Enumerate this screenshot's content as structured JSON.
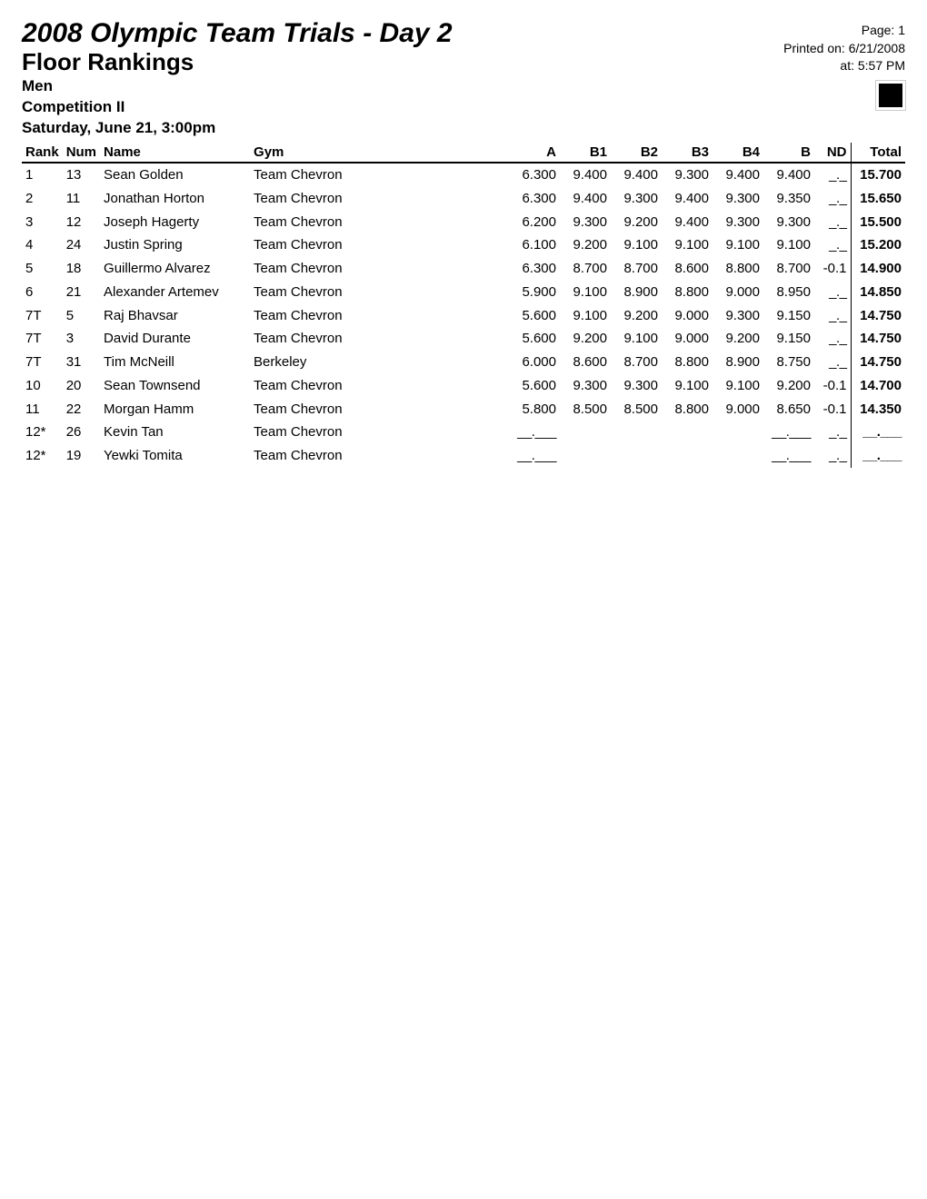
{
  "header": {
    "title_main": "2008 Olympic Team Trials - Day 2",
    "title_sub": "Floor Rankings",
    "line1": "Men",
    "line2": "Competition II",
    "line3": "Saturday, June 21, 3:00pm",
    "page_label": "Page: 1",
    "printed_label": "Printed on: 6/21/2008",
    "at_label": "at: 5:57 PM"
  },
  "table": {
    "columns": {
      "rank": "Rank",
      "num": "Num",
      "name": "Name",
      "gym": "Gym",
      "a": "A",
      "b1": "B1",
      "b2": "B2",
      "b3": "B3",
      "b4": "B4",
      "b": "B",
      "nd": "ND",
      "total": "Total"
    },
    "rows": [
      {
        "rank": "1",
        "num": "13",
        "name": "Sean Golden",
        "gym": "Team Chevron",
        "a": "6.300",
        "b1": "9.400",
        "b2": "9.400",
        "b3": "9.300",
        "b4": "9.400",
        "b": "9.400",
        "nd": "_._",
        "total": "15.700"
      },
      {
        "rank": "2",
        "num": "11",
        "name": "Jonathan Horton",
        "gym": "Team Chevron",
        "a": "6.300",
        "b1": "9.400",
        "b2": "9.300",
        "b3": "9.400",
        "b4": "9.300",
        "b": "9.350",
        "nd": "_._",
        "total": "15.650"
      },
      {
        "rank": "3",
        "num": "12",
        "name": "Joseph Hagerty",
        "gym": "Team Chevron",
        "a": "6.200",
        "b1": "9.300",
        "b2": "9.200",
        "b3": "9.400",
        "b4": "9.300",
        "b": "9.300",
        "nd": "_._",
        "total": "15.500"
      },
      {
        "rank": "4",
        "num": "24",
        "name": "Justin Spring",
        "gym": "Team Chevron",
        "a": "6.100",
        "b1": "9.200",
        "b2": "9.100",
        "b3": "9.100",
        "b4": "9.100",
        "b": "9.100",
        "nd": "_._",
        "total": "15.200"
      },
      {
        "rank": "5",
        "num": "18",
        "name": "Guillermo Alvarez",
        "gym": "Team Chevron",
        "a": "6.300",
        "b1": "8.700",
        "b2": "8.700",
        "b3": "8.600",
        "b4": "8.800",
        "b": "8.700",
        "nd": "-0.1",
        "total": "14.900"
      },
      {
        "rank": "6",
        "num": "21",
        "name": "Alexander Artemev",
        "gym": "Team Chevron",
        "a": "5.900",
        "b1": "9.100",
        "b2": "8.900",
        "b3": "8.800",
        "b4": "9.000",
        "b": "8.950",
        "nd": "_._",
        "total": "14.850"
      },
      {
        "rank": "7T",
        "num": "5",
        "name": "Raj Bhavsar",
        "gym": "Team Chevron",
        "a": "5.600",
        "b1": "9.100",
        "b2": "9.200",
        "b3": "9.000",
        "b4": "9.300",
        "b": "9.150",
        "nd": "_._",
        "total": "14.750"
      },
      {
        "rank": "7T",
        "num": "3",
        "name": "David Durante",
        "gym": "Team Chevron",
        "a": "5.600",
        "b1": "9.200",
        "b2": "9.100",
        "b3": "9.000",
        "b4": "9.200",
        "b": "9.150",
        "nd": "_._",
        "total": "14.750"
      },
      {
        "rank": "7T",
        "num": "31",
        "name": "Tim McNeill",
        "gym": "Berkeley",
        "a": "6.000",
        "b1": "8.600",
        "b2": "8.700",
        "b3": "8.800",
        "b4": "8.900",
        "b": "8.750",
        "nd": "_._",
        "total": "14.750"
      },
      {
        "rank": "10",
        "num": "20",
        "name": "Sean Townsend",
        "gym": "Team Chevron",
        "a": "5.600",
        "b1": "9.300",
        "b2": "9.300",
        "b3": "9.100",
        "b4": "9.100",
        "b": "9.200",
        "nd": "-0.1",
        "total": "14.700"
      },
      {
        "rank": "11",
        "num": "22",
        "name": "Morgan Hamm",
        "gym": "Team Chevron",
        "a": "5.800",
        "b1": "8.500",
        "b2": "8.500",
        "b3": "8.800",
        "b4": "9.000",
        "b": "8.650",
        "nd": "-0.1",
        "total": "14.350"
      },
      {
        "rank": "12*",
        "num": "26",
        "name": "Kevin Tan",
        "gym": "Team Chevron",
        "a": "__.___",
        "b1": "",
        "b2": "",
        "b3": "",
        "b4": "",
        "b": "__.___",
        "nd": "_._",
        "total": "__.___"
      },
      {
        "rank": "12*",
        "num": "19",
        "name": "Yewki Tomita",
        "gym": "Team Chevron",
        "a": "__.___",
        "b1": "",
        "b2": "",
        "b3": "",
        "b4": "",
        "b": "__.___",
        "nd": "_._",
        "total": "__.___"
      }
    ]
  }
}
